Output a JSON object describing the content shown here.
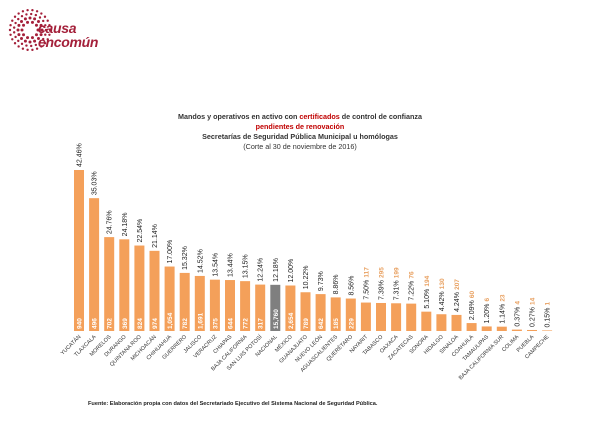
{
  "logo": {
    "line1": "causa",
    "line2": "encomún"
  },
  "title": {
    "line1_pre": "Mandos y operativos en activo con ",
    "line1_highlight": "certificados",
    "line1_post": " de control de confianza",
    "line2": "pendientes de renovación",
    "line3": "Secretarías de Seguridad Pública Municipal u homólogas",
    "line4": "(Corte al 30 de noviembre de 2016)"
  },
  "colors": {
    "bar": "#f4a05a",
    "bar_highlight": "#7f7f7f",
    "pct_text": "#222222",
    "count_text": "#ffffff",
    "count_text_outside": "#e8a060",
    "state_text": "#333333"
  },
  "chart_data": {
    "type": "bar",
    "categories": [
      "YUCATÁN",
      "TLAXCALA",
      "MORELOS",
      "DURANGO",
      "QUINTANA ROO",
      "MICHOACÁN",
      "CHIHUAHUA",
      "GUERRERO",
      "JALISCO",
      "VERACRUZ",
      "CHIAPAS",
      "BAJA CALIFORNIA",
      "SAN LUIS POTOSÍ",
      "NACIONAL",
      "MÉXICO",
      "GUANAJUATO",
      "NUEVO LEÓN",
      "AGUASCALIENTES",
      "QUERÉTARO",
      "NAYARIT",
      "TABASCO",
      "OAXACA",
      "ZACATECAS",
      "SONORA",
      "HIDALGO",
      "SINALOA",
      "COAHUILA",
      "TAMAULIPAS",
      "BAJA CALIFORNIA SUR",
      "COLIMA",
      "PUEBLA",
      "CAMPECHE"
    ],
    "percent_labels": [
      "42.46%",
      "35.03%",
      "24.76%",
      "24.18%",
      "22.54%",
      "21.14%",
      "17.00%",
      "15.32%",
      "14.52%",
      "13.54%",
      "13.44%",
      "13.15%",
      "12.24%",
      "12.18%",
      "12.00%",
      "10.22%",
      "9.73%",
      "8.86%",
      "8.56%",
      "7.50%",
      "7.39%",
      "7.31%",
      "7.22%",
      "5.10%",
      "4.42%",
      "4.24%",
      "2.09%",
      "1.20%",
      "1.14%",
      "0.37%",
      "0.27%",
      "0.15%"
    ],
    "values": [
      42.46,
      35.03,
      24.76,
      24.18,
      22.54,
      21.14,
      17.0,
      15.32,
      14.52,
      13.54,
      13.44,
      13.15,
      12.24,
      12.18,
      12.0,
      10.22,
      9.73,
      8.86,
      8.56,
      7.5,
      7.39,
      7.31,
      7.22,
      5.1,
      4.42,
      4.24,
      2.09,
      1.2,
      1.14,
      0.37,
      0.27,
      0.15
    ],
    "counts": [
      "940",
      "496",
      "702",
      "369",
      "824",
      "974",
      "1,054",
      "782",
      "1,691",
      "375",
      "644",
      "772",
      "317",
      "15,760",
      "2,654",
      "789",
      "642",
      "185",
      "229",
      "117",
      "295",
      "199",
      "76",
      "194",
      "130",
      "207",
      "60",
      "6",
      "23",
      "4",
      "14",
      "1"
    ],
    "highlight_category": "NACIONAL",
    "ylim": [
      0,
      45
    ],
    "grid": false,
    "legend": "none"
  },
  "source": "Fuente: Elaboración propia con datos del Secretariado Ejecutivo del Sistema Nacional de Seguridad Pública."
}
